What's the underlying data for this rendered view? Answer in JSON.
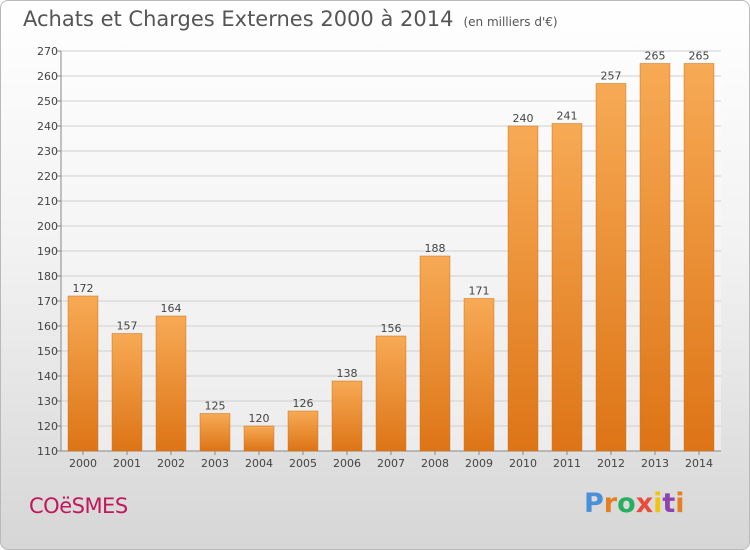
{
  "header": {
    "title": "Achats et Charges Externes 2000 à 2014",
    "unit": "(en milliers d'€)"
  },
  "commune": "COëSMES",
  "logo": {
    "text": "Proxiti",
    "letter_colors": [
      "#4a90d9",
      "#e67e22",
      "#27ae60",
      "#e74c3c",
      "#f1c40f",
      "#8e44ad",
      "#e67e22"
    ]
  },
  "chart_data": {
    "type": "bar",
    "categories": [
      "2000",
      "2001",
      "2002",
      "2003",
      "2004",
      "2005",
      "2006",
      "2007",
      "2008",
      "2009",
      "2010",
      "2011",
      "2012",
      "2013",
      "2014"
    ],
    "values": [
      172,
      157,
      164,
      125,
      120,
      126,
      138,
      156,
      188,
      171,
      240,
      241,
      257,
      265,
      265
    ],
    "ylim": [
      110,
      270
    ],
    "yticks": [
      110,
      120,
      130,
      140,
      150,
      160,
      170,
      180,
      190,
      200,
      210,
      220,
      230,
      240,
      250,
      260,
      270
    ],
    "grid": true,
    "bar_color": "#f5a04a"
  }
}
